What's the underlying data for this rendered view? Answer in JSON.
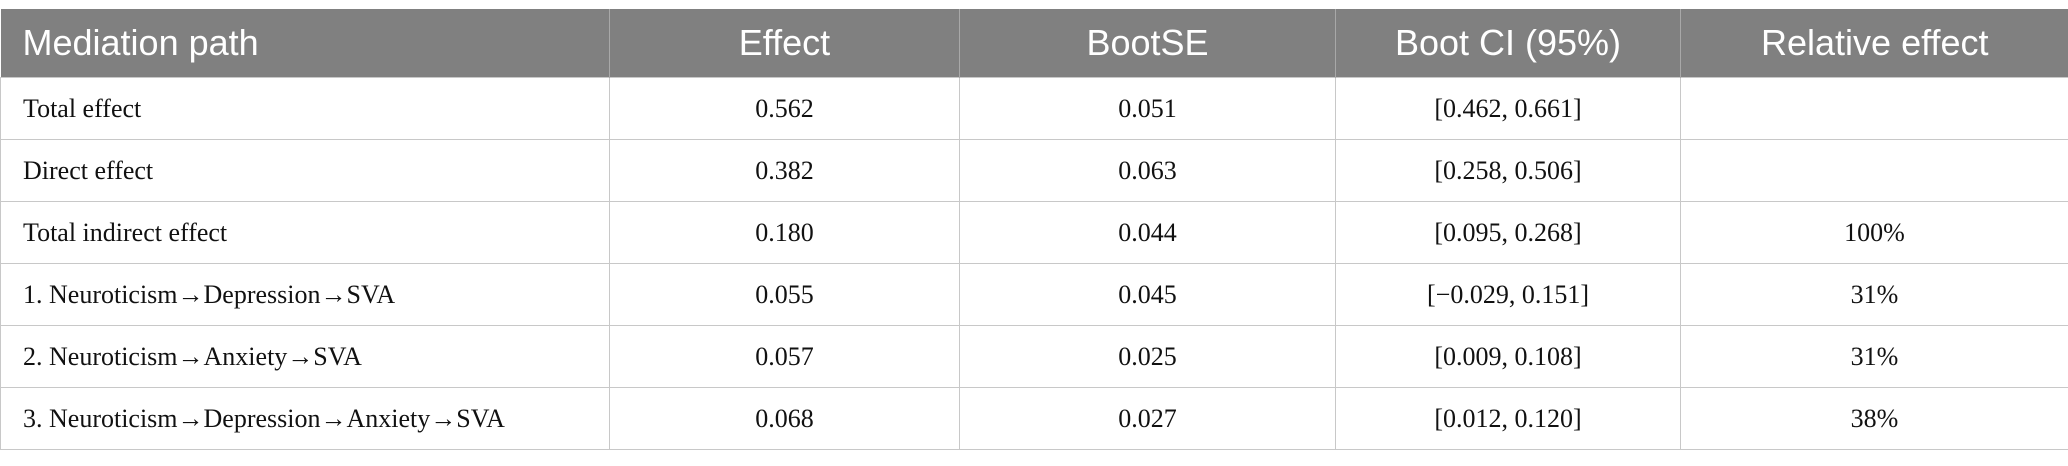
{
  "table": {
    "headers": [
      "Mediation path",
      "Effect",
      "BootSE",
      "Boot CI (95%)",
      "Relative effect"
    ],
    "rows": [
      {
        "path": "Total effect",
        "effect": "0.562",
        "bootse": "0.051",
        "ci": "[0.462, 0.661]",
        "relative": ""
      },
      {
        "path": "Direct effect",
        "effect": "0.382",
        "bootse": "0.063",
        "ci": "[0.258, 0.506]",
        "relative": ""
      },
      {
        "path": "Total indirect effect",
        "effect": "0.180",
        "bootse": "0.044",
        "ci": "[0.095, 0.268]",
        "relative": "100%"
      },
      {
        "path": "1. Neuroticism→Depression→SVA",
        "effect": "0.055",
        "bootse": "0.045",
        "ci": "[−0.029, 0.151]",
        "relative": "31%"
      },
      {
        "path": "2. Neuroticism→Anxiety→SVA",
        "effect": "0.057",
        "bootse": "0.025",
        "ci": "[0.009, 0.108]",
        "relative": "31%"
      },
      {
        "path": "3. Neuroticism→Depression→Anxiety→SVA",
        "effect": "0.068",
        "bootse": "0.027",
        "ci": "[0.012, 0.120]",
        "relative": "38%"
      }
    ]
  }
}
